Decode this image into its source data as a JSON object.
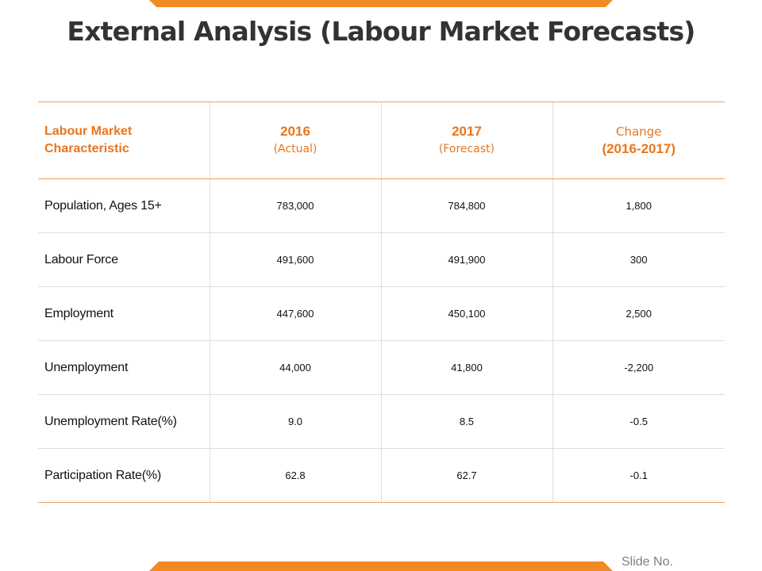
{
  "title": "External Analysis (Labour Market Forecasts)",
  "footer": {
    "slide_no": "Slide No."
  },
  "colors": {
    "accent": "#f08a24",
    "header_text": "#e8761e",
    "title_text": "#333333"
  },
  "table": {
    "headers": [
      {
        "main": "Labour Market Characteristic",
        "sub": ""
      },
      {
        "main": "2016",
        "sub": "(Actual)"
      },
      {
        "main": "2017",
        "sub": "(Forecast)"
      },
      {
        "main": "Change",
        "sub": "(2016-2017)"
      }
    ],
    "rows": [
      {
        "label": "Population, Ages 15+",
        "y2016": "783,000",
        "y2017": "784,800",
        "change": "1,800"
      },
      {
        "label": "Labour Force",
        "y2016": "491,600",
        "y2017": "491,900",
        "change": "300"
      },
      {
        "label": "Employment",
        "y2016": "447,600",
        "y2017": "450,100",
        "change": "2,500"
      },
      {
        "label": "Unemployment",
        "y2016": "44,000",
        "y2017": "41,800",
        "change": "-2,200"
      },
      {
        "label": "Unemployment Rate(%)",
        "y2016": "9.0",
        "y2017": "8.5",
        "change": "-0.5"
      },
      {
        "label": "Participation Rate(%)",
        "y2016": "62.8",
        "y2017": "62.7",
        "change": "-0.1"
      }
    ]
  }
}
